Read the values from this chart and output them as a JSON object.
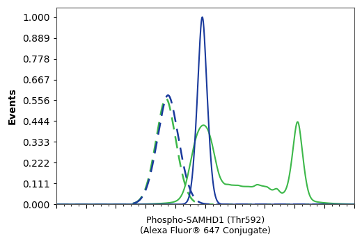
{
  "title_line1": "Phospho-SAMHD1 (Thr592)",
  "title_line2": "(Alexa Fluor® 647 Conjugate)",
  "ylabel": "Events",
  "background_color": "#ffffff",
  "plot_bg_color": "#ffffff",
  "blue_solid_color": "#1a3a9c",
  "green_solid_color": "#3db84a",
  "blue_dashed_color": "#1a3a9c",
  "green_dashed_color": "#3db84a",
  "xlim": [
    0,
    1000
  ],
  "ylim": [
    0,
    1.05
  ],
  "linewidth": 1.5,
  "border_color": "#aaaaaa"
}
